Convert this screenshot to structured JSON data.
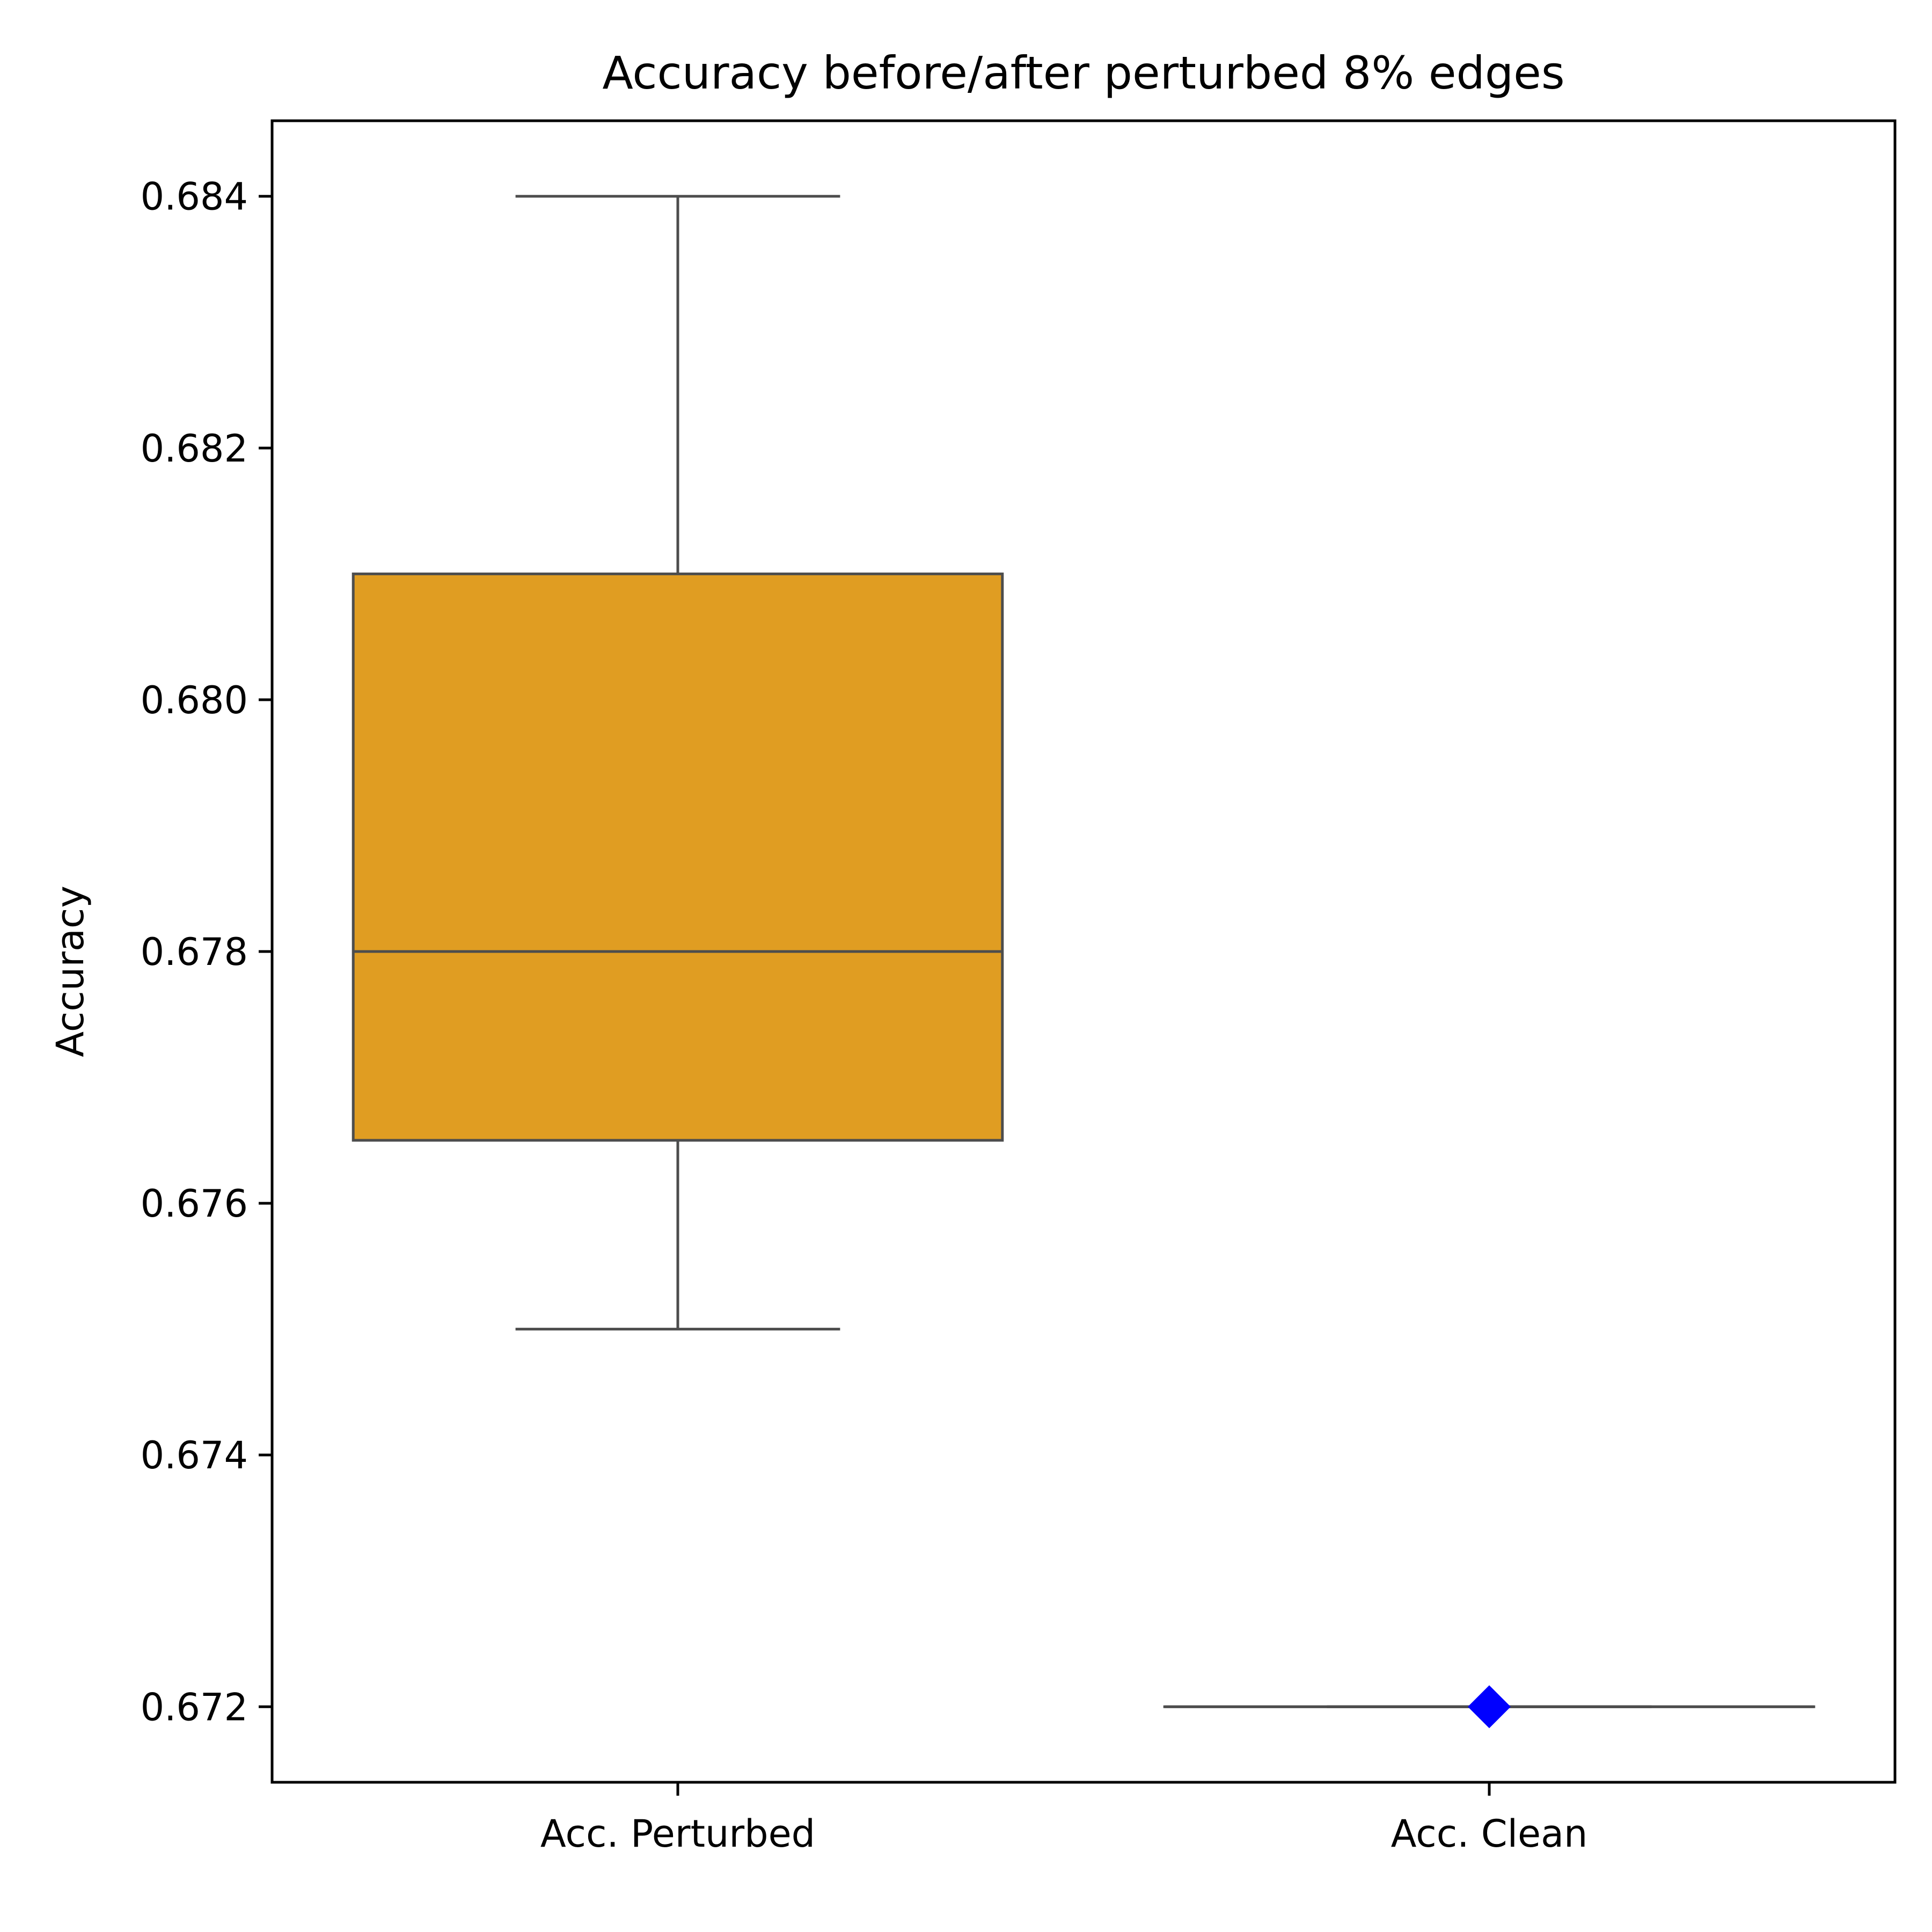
{
  "chart_data": {
    "type": "box",
    "title": "Accuracy before/after perturbed 8% edges",
    "xlabel": "",
    "ylabel": "Accuracy",
    "ylim": [
      0.6714,
      0.6846
    ],
    "yticks": [
      "0.672",
      "0.674",
      "0.676",
      "0.678",
      "0.680",
      "0.682",
      "0.684"
    ],
    "grid": false,
    "categories": [
      "Acc. Perturbed",
      "Acc. Clean"
    ],
    "boxes": [
      {
        "category": "Acc. Perturbed",
        "whisker_low": 0.675,
        "q1": 0.6765,
        "median": 0.678,
        "q3": 0.681,
        "whisker_high": 0.684,
        "color": "#E09D22"
      },
      {
        "category": "Acc. Clean",
        "whisker_low": 0.672,
        "q1": 0.672,
        "median": 0.672,
        "q3": 0.672,
        "whisker_high": 0.672,
        "color": "#E09D22"
      }
    ],
    "markers": [
      {
        "category": "Acc. Clean",
        "value": 0.672,
        "shape": "diamond",
        "color": "#0000FF"
      }
    ],
    "line_color": "#4d4d4d"
  }
}
